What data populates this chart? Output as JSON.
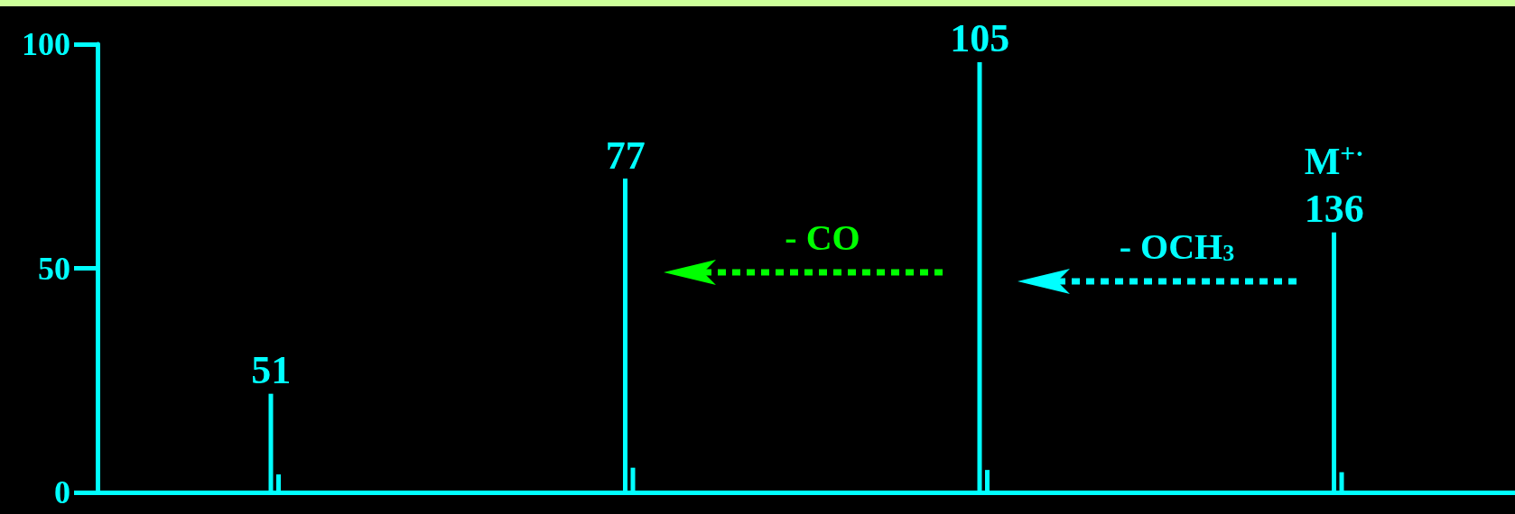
{
  "chart_data": {
    "type": "bar",
    "categories": [
      null,
      null,
      null,
      null
    ],
    "series": [
      {
        "color": "#00ffff",
        "values": [
          22,
          70,
          96,
          58
        ]
      },
      {
        "color": "#00ffff",
        "values": [
          4,
          5.5,
          5,
          4.5
        ]
      }
    ],
    "ylim": [
      0,
      100
    ],
    "yticks": [
      0,
      50,
      100
    ],
    "tick_labels": "y",
    "annotations": [
      "51",
      "77",
      "105",
      "136",
      "M$^{+·}$",
      "- CO",
      "- OCH$_{3}$"
    ]
  }
}
